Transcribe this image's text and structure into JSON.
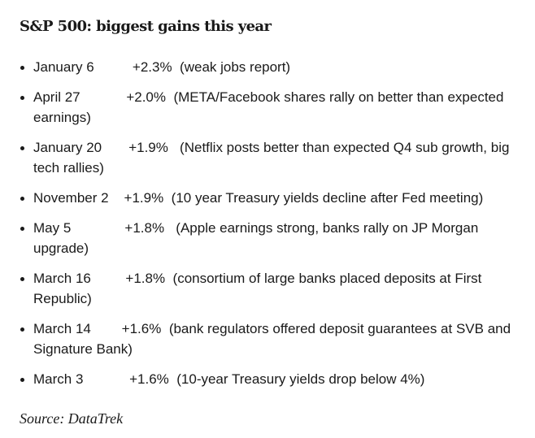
{
  "title": "S&P 500: biggest gains this year",
  "items": [
    {
      "date": "January 6",
      "change": "+2.3%",
      "note": "(weak jobs report)"
    },
    {
      "date": "April 27",
      "change": "+2.0%",
      "note": "(META/Facebook shares rally on better than expected earnings)"
    },
    {
      "date": "January 20",
      "change": "+1.9%",
      "note": "(Netflix posts better than expected Q4 sub growth, big tech rallies)"
    },
    {
      "date": "November 2",
      "change": "+1.9%",
      "note": "(10 year Treasury yields decline after Fed meeting)"
    },
    {
      "date": "May 5",
      "change": "+1.8%",
      "note": "(Apple earnings strong, banks rally on JP Morgan upgrade)"
    },
    {
      "date": "March 16",
      "change": "+1.8%",
      "note": "(consortium of large banks placed deposits at First Republic)"
    },
    {
      "date": "March 14",
      "change": "+1.6%",
      "note": "(bank regulators offered deposit guarantees at SVB and Signature Bank)"
    },
    {
      "date": "March 3",
      "change": "+1.6%",
      "note": "(10-year Treasury yields drop below 4%)"
    }
  ],
  "source": "Source: DataTrek"
}
